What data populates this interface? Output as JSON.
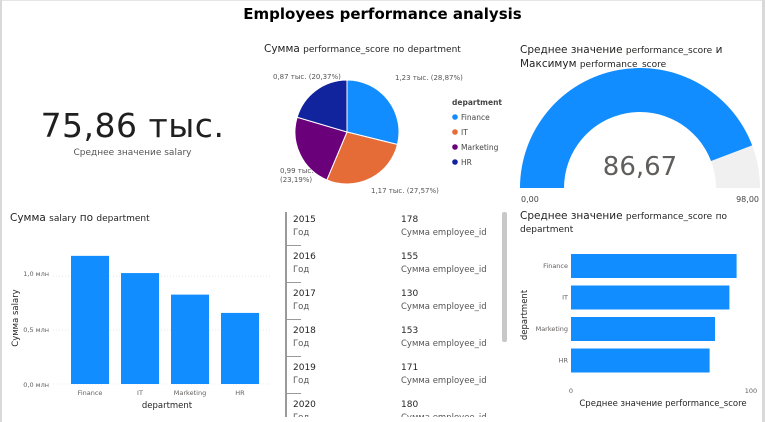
{
  "header": {
    "title": "Employees performance analysis"
  },
  "kpi": {
    "value": "75,86 тыс.",
    "label": "Среднее значение salary"
  },
  "pie": {
    "title_prefix": "Сумма",
    "title_mid": "performance_score",
    "title_by": "по",
    "title_suffix": "department",
    "legend_title": "department",
    "slices": [
      {
        "name": "Finance",
        "value": 1.23,
        "label": "1,23 тыс. (28,87%)",
        "color": "#118DFF"
      },
      {
        "name": "IT",
        "value": 1.17,
        "label": "1,17 тыс. (27,57%)",
        "color": "#E66C37"
      },
      {
        "name": "Marketing",
        "value": 0.99,
        "label_line1": "0,99 тыс.",
        "label_line2": "(23,19%)",
        "color": "#6B007B"
      },
      {
        "name": "HR",
        "value": 0.87,
        "label": "0,87 тыс. (20,37%)",
        "color": "#12239E"
      }
    ]
  },
  "gauge": {
    "title_line1_a": "Среднее значение",
    "title_line1_b": "performance_score",
    "title_line1_c": "и",
    "title_line2_a": "Максимум",
    "title_line2_b": "performance_score",
    "value": 86.67,
    "value_label": "86,67",
    "min": 0,
    "max": 98,
    "min_label": "0,00",
    "max_label": "98,00",
    "fill_color": "#118DFF",
    "track_color": "#F0F0F0"
  },
  "salary_chart": {
    "title_a": "Сумма",
    "title_b": "salary",
    "title_c": "по",
    "title_d": "department",
    "xlabel": "department",
    "ylabel": "Сумма salary",
    "yticks": [
      "0,0 млн",
      "0,5 млн",
      "1,0 млн"
    ],
    "color": "#118DFF"
  },
  "cards": {
    "rows": [
      {
        "year": "2015",
        "year_label": "Год",
        "count": "178",
        "count_label": "Сумма employee_id"
      },
      {
        "year": "2016",
        "year_label": "Год",
        "count": "155",
        "count_label": "Сумма employee_id"
      },
      {
        "year": "2017",
        "year_label": "Год",
        "count": "130",
        "count_label": "Сумма employee_id"
      },
      {
        "year": "2018",
        "year_label": "Год",
        "count": "153",
        "count_label": "Сумма employee_id"
      },
      {
        "year": "2019",
        "year_label": "Год",
        "count": "171",
        "count_label": "Сумма employee_id"
      },
      {
        "year": "2020",
        "year_label": "Год",
        "count": "180",
        "count_label": "Сумма employee_id"
      }
    ]
  },
  "perf_chart": {
    "title_a": "Среднее значение",
    "title_b": "performance_score",
    "title_c": "по",
    "title_d": "department",
    "xlabel_a": "Среднее значение",
    "xlabel_b": "performance_score",
    "ylabel": "department",
    "xtick0": "0",
    "xtick100": "100",
    "color": "#118DFF"
  },
  "chart_data": [
    {
      "type": "pie",
      "categories": [
        "Finance",
        "IT",
        "Marketing",
        "HR"
      ],
      "values": [
        1230,
        1170,
        990,
        870
      ],
      "percent": [
        28.87,
        27.57,
        23.19,
        20.37
      ],
      "title": "Сумма performance_score по department",
      "legend": "department"
    },
    {
      "type": "bar",
      "categories": [
        "Finance",
        "IT",
        "Marketing",
        "HR"
      ],
      "values": [
        1.19,
        1.03,
        0.83,
        0.66
      ],
      "title": "Сумма salary по department",
      "xlabel": "department",
      "ylabel": "Сумма salary",
      "ylim": [
        0,
        1.3
      ],
      "unit": "млн"
    },
    {
      "type": "bar",
      "orientation": "horizontal",
      "categories": [
        "Finance",
        "IT",
        "Marketing",
        "HR"
      ],
      "values": [
        92,
        88,
        80,
        77
      ],
      "title": "Среднее значение performance_score по department",
      "xlabel": "Среднее значение performance_score",
      "ylabel": "department",
      "xlim": [
        0,
        100
      ]
    }
  ]
}
